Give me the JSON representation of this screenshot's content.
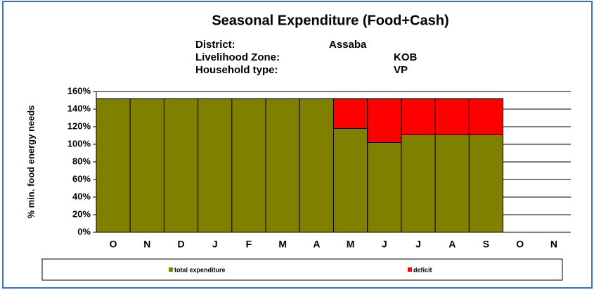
{
  "chart_data": {
    "type": "stacked_bar",
    "title": "Seasonal Expenditure (Food+Cash)",
    "header_lines": [
      {
        "label": "District:",
        "value": "Assaba"
      },
      {
        "label": "Livelihood Zone:",
        "value": "KOB"
      },
      {
        "label": "Household type:",
        "value": "VP"
      }
    ],
    "y_label": "% min. food energy needs",
    "categories": [
      "O",
      "N",
      "D",
      "J",
      "F",
      "M",
      "A",
      "M",
      "J",
      "J",
      "A",
      "S",
      "O",
      "N"
    ],
    "series": [
      {
        "name": "total expenditure",
        "color": "#808000",
        "values": [
          152,
          152,
          152,
          152,
          152,
          152,
          152,
          118,
          102,
          111,
          111,
          111,
          null,
          null
        ]
      },
      {
        "name": "deficit",
        "color": "#ff0000",
        "values": [
          0,
          0,
          0,
          0,
          0,
          0,
          0,
          34,
          50,
          41,
          41,
          41,
          null,
          null
        ]
      }
    ],
    "ylim": [
      0,
      160
    ],
    "yticks": [
      {
        "value": 0,
        "label": "0%"
      },
      {
        "value": 20,
        "label": "20%"
      },
      {
        "value": 40,
        "label": "40%"
      },
      {
        "value": 60,
        "label": "60%"
      },
      {
        "value": 80,
        "label": "80%"
      },
      {
        "value": 100,
        "label": "100%"
      },
      {
        "value": 120,
        "label": "120%"
      },
      {
        "value": 140,
        "label": "140%"
      },
      {
        "value": 160,
        "label": "160%"
      }
    ],
    "grid": true
  }
}
